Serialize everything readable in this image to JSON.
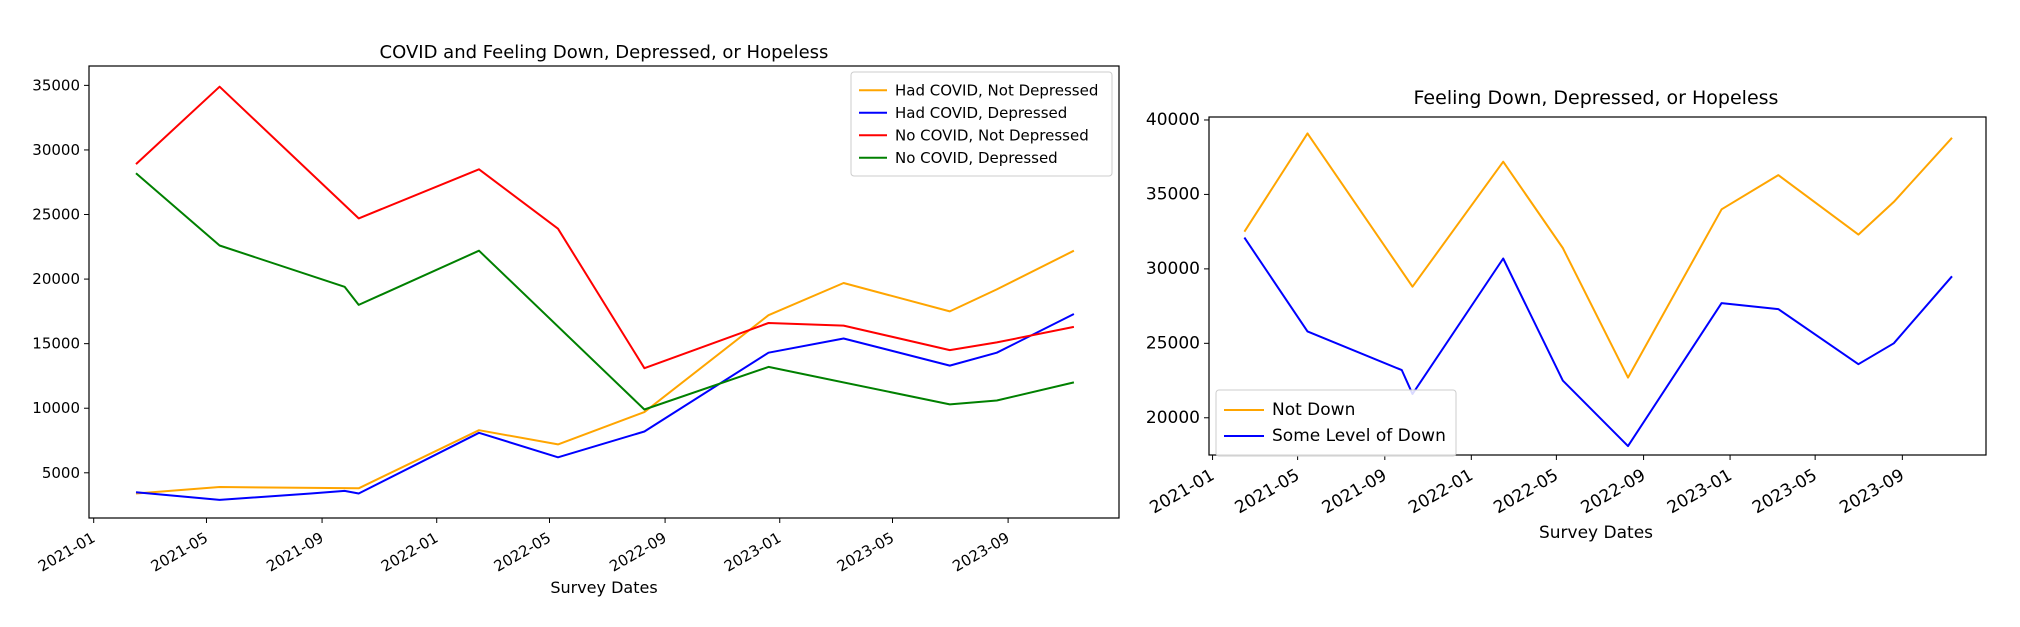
{
  "chart_data": [
    {
      "type": "line",
      "title": "COVID and Feeling Down, Depressed, or Hopeless",
      "xlabel": "Survey Dates",
      "ylabel": "",
      "x_axis_type": "date",
      "xlim": [
        "2020-12-27",
        "2023-12-28"
      ],
      "ylim": [
        1500,
        36500
      ],
      "x_tick_labels": [
        "2021-01",
        "2021-05",
        "2021-09",
        "2022-01",
        "2022-05",
        "2022-09",
        "2023-01",
        "2023-05",
        "2023-09"
      ],
      "y_ticks": [
        5000,
        10000,
        15000,
        20000,
        25000,
        30000,
        35000
      ],
      "grid": false,
      "legend": "top-right",
      "series": [
        {
          "name": "Had COVID, Not Depressed",
          "color": "#ffa500",
          "points": [
            [
              "2021-02-15",
              3400
            ],
            [
              "2021-05-15",
              3900
            ],
            [
              "2021-10-10",
              3800
            ],
            [
              "2022-02-15",
              8300
            ],
            [
              "2022-05-10",
              7200
            ],
            [
              "2022-08-10",
              9700
            ],
            [
              "2022-12-20",
              17200
            ],
            [
              "2023-03-10",
              19700
            ],
            [
              "2023-07-01",
              17500
            ],
            [
              "2023-08-20",
              19200
            ],
            [
              "2023-11-10",
              22200
            ]
          ]
        },
        {
          "name": "Had COVID, Depressed",
          "color": "#0000ff",
          "points": [
            [
              "2021-02-15",
              3500
            ],
            [
              "2021-05-15",
              2900
            ],
            [
              "2021-08-20",
              3400
            ],
            [
              "2021-09-25",
              3600
            ],
            [
              "2021-10-10",
              3400
            ],
            [
              "2022-02-15",
              8100
            ],
            [
              "2022-05-10",
              6200
            ],
            [
              "2022-08-10",
              8200
            ],
            [
              "2022-12-20",
              14300
            ],
            [
              "2023-03-10",
              15400
            ],
            [
              "2023-07-01",
              13300
            ],
            [
              "2023-08-20",
              14300
            ],
            [
              "2023-11-10",
              17300
            ]
          ]
        },
        {
          "name": "No COVID, Not Depressed",
          "color": "#ff0000",
          "points": [
            [
              "2021-02-15",
              28900
            ],
            [
              "2021-05-15",
              34900
            ],
            [
              "2021-10-10",
              24700
            ],
            [
              "2022-02-15",
              28500
            ],
            [
              "2022-05-10",
              23900
            ],
            [
              "2022-08-10",
              13100
            ],
            [
              "2022-12-20",
              16600
            ],
            [
              "2023-03-10",
              16400
            ],
            [
              "2023-07-01",
              14500
            ],
            [
              "2023-08-20",
              15100
            ],
            [
              "2023-11-10",
              16300
            ]
          ]
        },
        {
          "name": "No COVID, Depressed",
          "color": "#008000",
          "points": [
            [
              "2021-02-15",
              28200
            ],
            [
              "2021-05-15",
              22600
            ],
            [
              "2021-09-25",
              19400
            ],
            [
              "2021-10-10",
              18000
            ],
            [
              "2022-02-15",
              22200
            ],
            [
              "2022-08-10",
              9900
            ],
            [
              "2022-12-20",
              13200
            ],
            [
              "2023-07-01",
              10300
            ],
            [
              "2023-08-20",
              10600
            ],
            [
              "2023-11-10",
              12000
            ]
          ]
        }
      ]
    },
    {
      "type": "line",
      "title": "Feeling Down, Depressed, or Hopeless",
      "xlabel": "Survey Dates",
      "ylabel": "",
      "x_axis_type": "date",
      "xlim": [
        "2020-12-27",
        "2023-12-28"
      ],
      "ylim": [
        17500,
        40200
      ],
      "x_tick_labels": [
        "2021-01",
        "2021-05",
        "2021-09",
        "2022-01",
        "2022-05",
        "2022-09",
        "2023-01",
        "2023-05",
        "2023-09"
      ],
      "y_ticks": [
        20000,
        25000,
        30000,
        35000,
        40000
      ],
      "grid": false,
      "legend": "bottom-left",
      "series": [
        {
          "name": "Not Down",
          "color": "#ffa500",
          "points": [
            [
              "2021-02-15",
              32500
            ],
            [
              "2021-05-15",
              39100
            ],
            [
              "2021-10-10",
              28800
            ],
            [
              "2022-02-15",
              37200
            ],
            [
              "2022-05-10",
              31400
            ],
            [
              "2022-08-10",
              22700
            ],
            [
              "2022-12-20",
              34000
            ],
            [
              "2023-03-10",
              36300
            ],
            [
              "2023-07-01",
              32300
            ],
            [
              "2023-08-20",
              34500
            ],
            [
              "2023-11-10",
              38800
            ]
          ]
        },
        {
          "name": "Some Level of Down",
          "color": "#0000ff",
          "points": [
            [
              "2021-02-15",
              32100
            ],
            [
              "2021-05-15",
              25800
            ],
            [
              "2021-09-25",
              23200
            ],
            [
              "2021-10-10",
              21600
            ],
            [
              "2022-02-15",
              30700
            ],
            [
              "2022-05-10",
              22500
            ],
            [
              "2022-08-10",
              18100
            ],
            [
              "2022-12-20",
              27700
            ],
            [
              "2023-03-10",
              27300
            ],
            [
              "2023-07-01",
              23600
            ],
            [
              "2023-08-20",
              25000
            ],
            [
              "2023-11-10",
              29500
            ]
          ]
        }
      ]
    }
  ]
}
